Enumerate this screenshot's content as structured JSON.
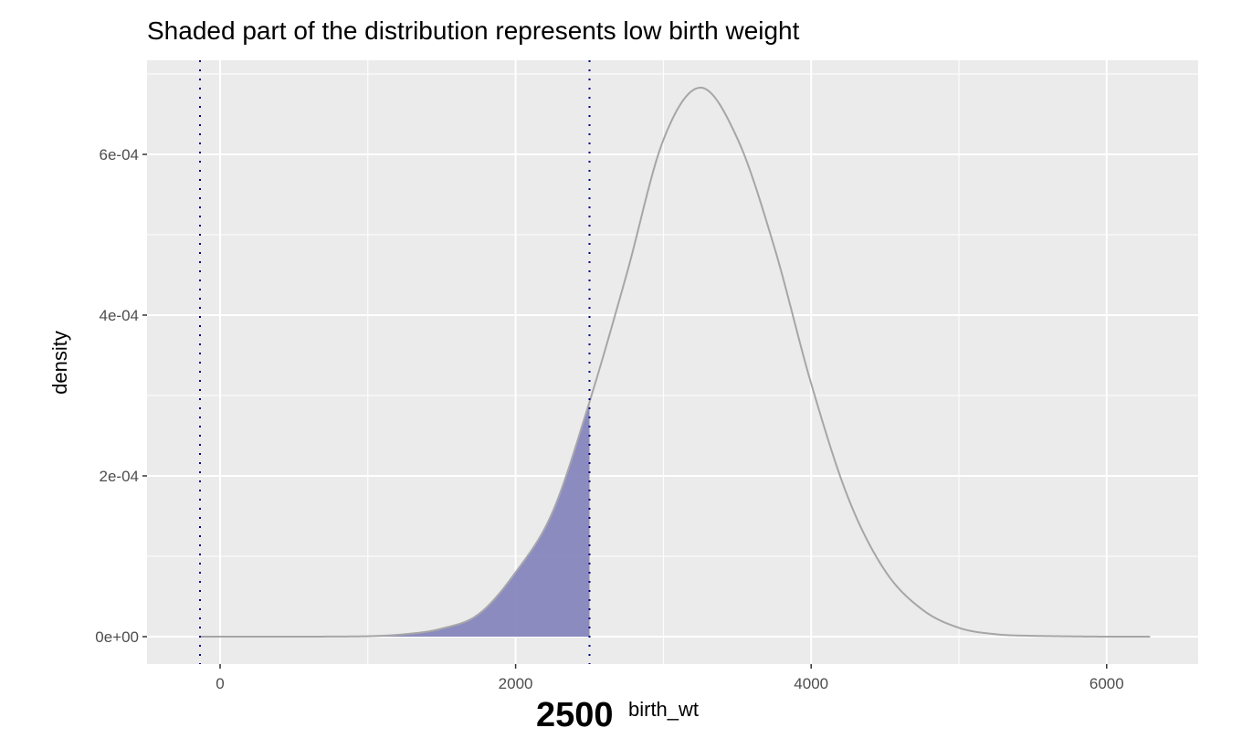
{
  "chart_data": {
    "type": "area",
    "title": "Shaded part of the distribution represents low birth weight",
    "xlabel": "birth_wt",
    "ylabel": "density",
    "annotation": "2500",
    "xlim": [
      -500,
      6600
    ],
    "ylim": [
      -3.5e-05,
      0.000715
    ],
    "xticks": [
      0,
      2000,
      4000,
      6000
    ],
    "xtick_labels": [
      "0",
      "2000",
      "4000",
      "6000"
    ],
    "yticks": [
      0,
      0.0002,
      0.0004,
      0.0006
    ],
    "ytick_labels": [
      "0e+00",
      "2e-04",
      "4e-04",
      "6e-04"
    ],
    "grid": true,
    "vlines": [
      -136,
      2500
    ],
    "shade_below": 2500,
    "colors": {
      "panel": "#ebebeb",
      "line": "#a6a6a6",
      "fill": "#8686bd",
      "vline": "#00008b"
    },
    "x": [
      -136,
      500,
      1000,
      1250,
      1500,
      1750,
      2000,
      2250,
      2500,
      2750,
      3000,
      3250,
      3500,
      3750,
      4000,
      4250,
      4500,
      4750,
      5000,
      5250,
      5500,
      6000,
      6300
    ],
    "y": [
      0,
      0,
      5e-07,
      3e-06,
      1e-05,
      2.8e-05,
      8e-05,
      0.000155,
      0.000292,
      0.00045,
      0.000618,
      0.000683,
      0.00062,
      0.000485,
      0.000315,
      0.000173,
      8.2e-05,
      3.4e-05,
      1.1e-05,
      3e-06,
      1e-06,
      0,
      0
    ]
  }
}
